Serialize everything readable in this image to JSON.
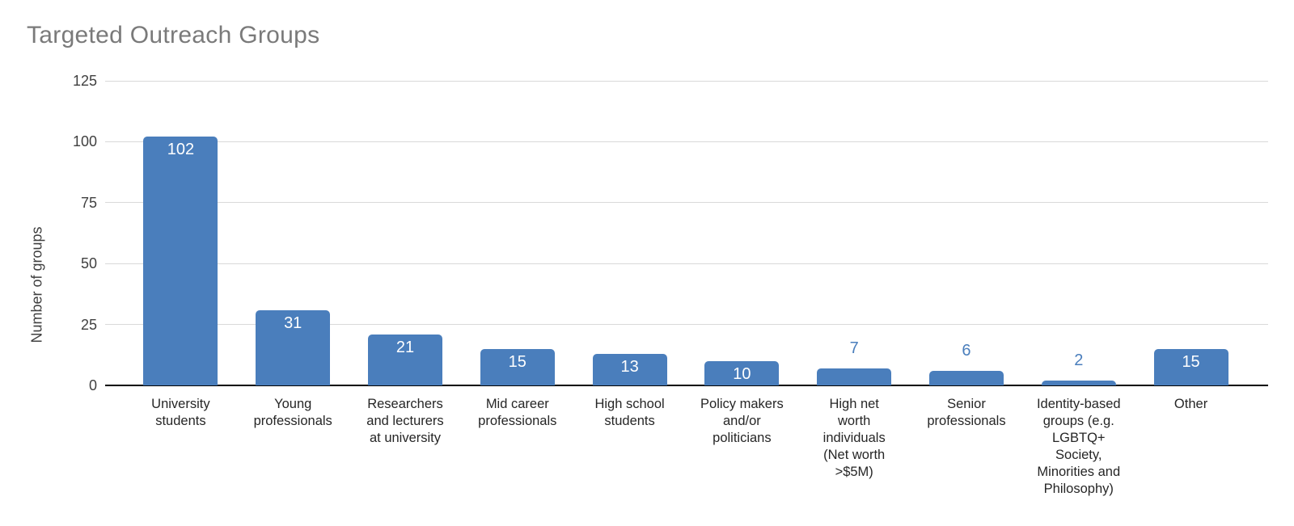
{
  "chart_data": {
    "type": "bar",
    "title": "Targeted Outreach Groups",
    "xlabel": "",
    "ylabel": "Number of groups",
    "categories": [
      "University students",
      "Young professionals",
      "Researchers and lecturers at university",
      "Mid career professionals",
      "High school students",
      "Policy makers and/or politicians",
      "High net worth individuals (Net worth >$5M)",
      "Senior professionals",
      "Identity-based groups (e.g. LGBTQ+ Society, Minorities and Philosophy)",
      "Other"
    ],
    "category_label_lines": [
      [
        "University",
        "students"
      ],
      [
        "Young",
        "professionals"
      ],
      [
        "Researchers",
        "and lecturers",
        "at university"
      ],
      [
        "Mid career",
        "professionals"
      ],
      [
        "High school",
        "students"
      ],
      [
        "Policy makers",
        "and/or",
        "politicians"
      ],
      [
        "High net",
        "worth",
        "individuals",
        "(Net worth",
        ">$5M)"
      ],
      [
        "Senior",
        "professionals"
      ],
      [
        "Identity-based",
        "groups (e.g.",
        "LGBTQ+",
        "Society,",
        "Minorities and",
        "Philosophy)"
      ],
      [
        "Other"
      ]
    ],
    "values": [
      102,
      31,
      21,
      15,
      13,
      10,
      7,
      6,
      2,
      15
    ],
    "value_label_placement": [
      "inside",
      "inside",
      "inside",
      "inside",
      "inside",
      "inside",
      "outside",
      "outside",
      "outside",
      "inside"
    ],
    "ylim": [
      0,
      125
    ],
    "yticks": [
      0,
      25,
      50,
      75,
      100,
      125
    ],
    "grid": "horizontal",
    "legend": "none",
    "colors": {
      "bar": "#4a7ebc",
      "value_label_inside": "#ffffff",
      "value_label_outside": "#4a7ebc",
      "title": "#7a7a7a",
      "axis_text": "#404040",
      "x_label_text": "#262626",
      "gridline": "#d9d9d9",
      "axis_line": "#000000",
      "background": "#ffffff"
    }
  }
}
